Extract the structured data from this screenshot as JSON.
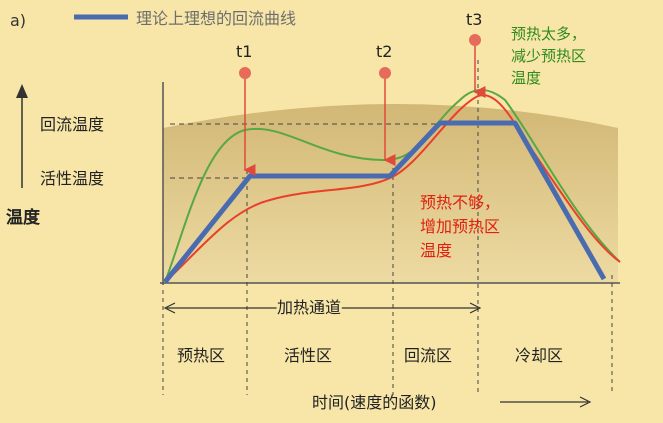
{
  "panel_label": "a)",
  "legend_label": "理论上理想的回流曲线",
  "y_axis_label": "温度",
  "y_levels": [
    "回流温度",
    "活性温度"
  ],
  "markers": [
    "t1",
    "t2",
    "t3"
  ],
  "annotation_green": [
    "预热太多，",
    "减少预热区",
    "温度"
  ],
  "annotation_red": [
    "预热不够，",
    "增加预热区",
    "温度"
  ],
  "heating_channel_label": "加热通道",
  "zones": [
    "预热区",
    "活性区",
    "回流区",
    "冷却区"
  ],
  "x_axis_label": "时间(速度的函数)",
  "colors": {
    "ideal": "#4a6bb0",
    "green_curve": "#58a843",
    "red_curve": "#e8402a",
    "marker": "#e66b5a",
    "green_text": "#2f8a1f",
    "red_text": "#e02010",
    "background": "#f7e6a8",
    "plot_fill": "#c9ad6a"
  }
}
